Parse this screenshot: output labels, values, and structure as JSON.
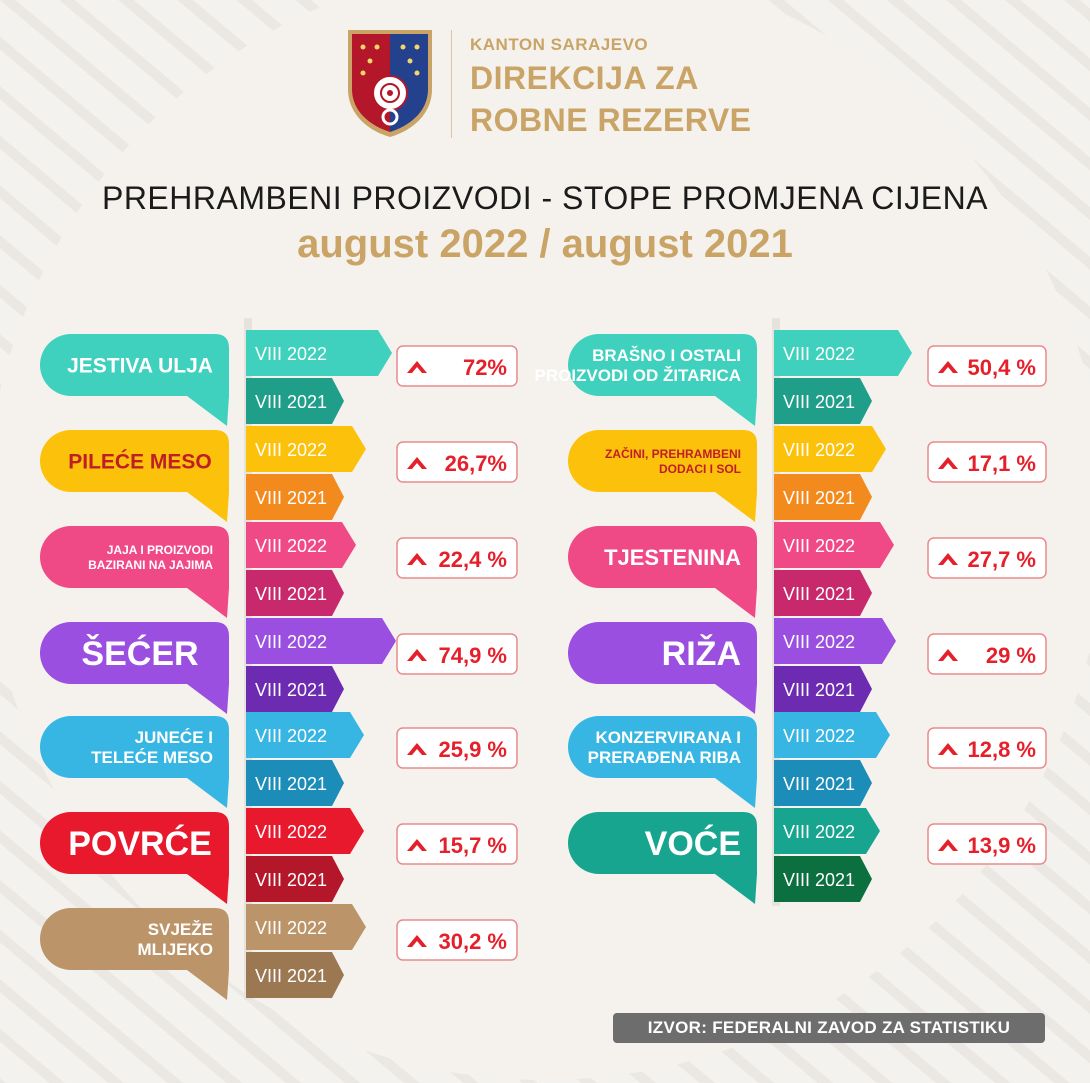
{
  "header": {
    "org_sub": "KANTON SARAJEVO",
    "org_title_line1": "DIREKCIJA ZA",
    "org_title_line2": "ROBNE REZERVE",
    "title": "PREHRAMBENI PROIZVODI - STOPE PROMJENA CIJENA",
    "subtitle": "august 2022 / august 2021"
  },
  "source": "IZVOR: FEDERALNI ZAVOD ZA STATISTIKU",
  "colors": {
    "gold": "#c9a466",
    "red_text": "#e5202b",
    "badge_border": "#e88b8b"
  },
  "chart_data": {
    "type": "table",
    "period_labels": [
      "VIII 2022",
      "VIII 2021"
    ],
    "items": [
      {
        "label": [
          "JESTIVA ULJA"
        ],
        "value": "72%",
        "change_pct": 72,
        "color": "#3fd1bd",
        "dark": "#1f9e8a"
      },
      {
        "label": [
          "PILEĆE MESO"
        ],
        "value": "26,7%",
        "change_pct": 26.7,
        "color": "#fcc10a",
        "dark": "#f28a1d",
        "text_color": "#c01e26"
      },
      {
        "label": [
          "JAJA I PROIZVODI",
          "BAZIRANI NA JAJIMA"
        ],
        "value": "22,4 %",
        "change_pct": 22.4,
        "color": "#f04a86",
        "dark": "#c8286c"
      },
      {
        "label": [
          "ŠEĆER"
        ],
        "value": "74,9 %",
        "change_pct": 74.9,
        "color": "#9a4fe0",
        "dark": "#6c2bb0"
      },
      {
        "label": [
          "JUNEĆE I",
          "TELEĆE MESO"
        ],
        "value": "25,9 %",
        "change_pct": 25.9,
        "color": "#38b6e3",
        "dark": "#1c8cb8"
      },
      {
        "label": [
          "POVRĆE"
        ],
        "value": "15,7 %",
        "change_pct": 15.7,
        "color": "#e8192c",
        "dark": "#b4162a"
      },
      {
        "label": [
          "SVJEŽE",
          "MLIJEKO"
        ],
        "value": "30,2 %",
        "change_pct": 30.2,
        "color": "#bb9569",
        "dark": "#9c7852"
      },
      {
        "label": [
          "BRAŠNO I OSTALI",
          "PROIZVODI OD ŽITARICA"
        ],
        "value": "50,4 %",
        "change_pct": 50.4,
        "color": "#3fd1bd",
        "dark": "#1f9e8a"
      },
      {
        "label": [
          "ZAČINI, PREHRAMBENI",
          "DODACI I SOL"
        ],
        "value": "17,1 %",
        "change_pct": 17.1,
        "color": "#fcc10a",
        "dark": "#f28a1d",
        "text_color": "#c01e26"
      },
      {
        "label": [
          "TJESTENINA"
        ],
        "value": "27,7 %",
        "change_pct": 27.7,
        "color": "#f04a86",
        "dark": "#c8286c"
      },
      {
        "label": [
          "RIŽA"
        ],
        "value": "29 %",
        "change_pct": 29,
        "color": "#9a4fe0",
        "dark": "#6c2bb0"
      },
      {
        "label": [
          "KONZERVIRANA I",
          "PRERAĐENA RIBA"
        ],
        "value": "12,8 %",
        "change_pct": 12.8,
        "color": "#38b6e3",
        "dark": "#1c8cb8"
      },
      {
        "label": [
          "VOĆE"
        ],
        "value": "13,9 %",
        "change_pct": 13.9,
        "color": "#17a58f",
        "dark": "#0b6f3f"
      }
    ]
  }
}
